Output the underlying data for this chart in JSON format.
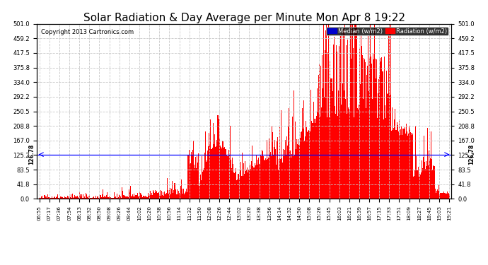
{
  "title": "Solar Radiation & Day Average per Minute Mon Apr 8 19:22",
  "copyright": "Copyright 2013 Cartronics.com",
  "median_value": 126.78,
  "y_max": 501.0,
  "y_min": 0.0,
  "y_ticks": [
    0.0,
    41.8,
    83.5,
    125.2,
    167.0,
    208.8,
    250.5,
    292.2,
    334.0,
    375.8,
    417.5,
    459.2,
    501.0
  ],
  "y_tick_labels": [
    "0.0",
    "41.8",
    "83.5",
    "125.2",
    "167.0",
    "208.8",
    "250.5",
    "292.2",
    "334.0",
    "375.8",
    "417.5",
    "459.2",
    "501.0"
  ],
  "x_tick_labels": [
    "06:55",
    "07:17",
    "07:36",
    "07:54",
    "08:13",
    "08:32",
    "08:50",
    "09:08",
    "09:26",
    "09:44",
    "10:02",
    "10:20",
    "10:38",
    "10:56",
    "11:14",
    "11:32",
    "11:50",
    "12:08",
    "12:26",
    "12:44",
    "13:02",
    "13:20",
    "13:38",
    "13:56",
    "14:14",
    "14:32",
    "14:50",
    "15:08",
    "15:26",
    "15:45",
    "16:03",
    "16:21",
    "16:39",
    "16:57",
    "17:15",
    "17:33",
    "17:51",
    "18:09",
    "18:27",
    "18:45",
    "19:03",
    "19:21"
  ],
  "background_color": "#ffffff",
  "plot_bg_color": "#ffffff",
  "bar_color": "#ff0000",
  "median_line_color": "#0000ff",
  "grid_color": "#c8c8c8",
  "title_fontsize": 11,
  "legend_median_color": "#0000cc",
  "legend_radiation_color": "#ff0000"
}
